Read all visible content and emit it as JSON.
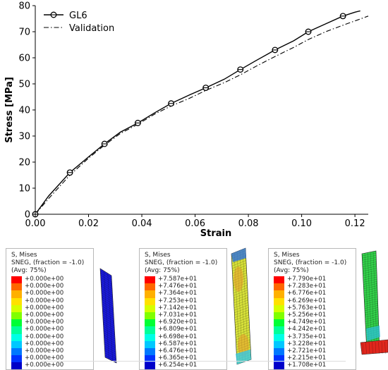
{
  "chart_data": {
    "type": "line",
    "xlabel": "Strain",
    "ylabel": "Stress [MPa]",
    "xlim": [
      0,
      0.125
    ],
    "ylim": [
      0,
      80
    ],
    "xticks": [
      0.0,
      0.02,
      0.04,
      0.06,
      0.08,
      0.1,
      0.12
    ],
    "xtick_labels": [
      "0.00",
      "0.02",
      "0.04",
      "0.06",
      "0.08",
      "0.10",
      "0.12"
    ],
    "yticks": [
      0,
      10,
      20,
      30,
      40,
      50,
      60,
      70,
      80
    ],
    "ytick_labels": [
      "0",
      "10",
      "20",
      "30",
      "40",
      "50",
      "60",
      "70",
      "80"
    ],
    "legend_position": "top-left",
    "grid": false,
    "series": [
      {
        "name": "GL6",
        "style": "solid-with-markers",
        "color": "#000000",
        "x": [
          0,
          0.005,
          0.013,
          0.02,
          0.026,
          0.032,
          0.0385,
          0.045,
          0.051,
          0.058,
          0.064,
          0.071,
          0.077,
          0.083,
          0.09,
          0.097,
          0.1025,
          0.109,
          0.1155,
          0.12,
          0.122
        ],
        "y": [
          0,
          7,
          16,
          22,
          27,
          31.5,
          35,
          39,
          42.5,
          45.8,
          48.5,
          51.8,
          55.5,
          59,
          63,
          66.5,
          70,
          73,
          76,
          77.5,
          78
        ],
        "markers_x": [
          0,
          0.013,
          0.026,
          0.0385,
          0.051,
          0.064,
          0.077,
          0.09,
          0.1025,
          0.1155
        ],
        "markers_y": [
          0,
          16,
          27,
          35,
          42.5,
          48.5,
          55.5,
          63,
          70,
          76
        ]
      },
      {
        "name": "Validation",
        "style": "dash-dot",
        "color": "#000000",
        "x": [
          0,
          0.005,
          0.013,
          0.02,
          0.026,
          0.032,
          0.0385,
          0.045,
          0.051,
          0.058,
          0.064,
          0.071,
          0.077,
          0.083,
          0.09,
          0.097,
          0.1025,
          0.109,
          0.1155,
          0.121,
          0.125
        ],
        "y": [
          0,
          6,
          15,
          21.5,
          26.5,
          31,
          34.5,
          38.5,
          41.5,
          44.5,
          47.5,
          50.5,
          53.5,
          56.8,
          60.5,
          64,
          67,
          70,
          72.5,
          74.5,
          76
        ]
      }
    ]
  },
  "contours": [
    {
      "title_lines": [
        "S, Mises",
        "SNEG, (fraction = -1.0)",
        "(Avg: 75%)"
      ],
      "values": [
        "+0.000e+00",
        "+0.000e+00",
        "+0.000e+00",
        "+0.000e+00",
        "+0.000e+00",
        "+0.000e+00",
        "+0.000e+00",
        "+0.000e+00",
        "+0.000e+00",
        "+0.000e+00",
        "+0.000e+00",
        "+0.000e+00",
        "+0.000e+00"
      ]
    },
    {
      "title_lines": [
        "S, Mises",
        "SNEG, (fraction = -1.0)",
        "(Avg: 75%)"
      ],
      "values": [
        "+7.587e+01",
        "+7.476e+01",
        "+7.364e+01",
        "+7.253e+01",
        "+7.142e+01",
        "+7.031e+01",
        "+6.920e+01",
        "+6.809e+01",
        "+6.698e+01",
        "+6.587e+01",
        "+6.476e+01",
        "+6.365e+01",
        "+6.254e+01"
      ]
    },
    {
      "title_lines": [
        "S, Mises",
        "SNEG, (fraction = -1.0)",
        "(Avg: 75%)"
      ],
      "values": [
        "+7.790e+01",
        "+7.283e+01",
        "+6.776e+01",
        "+6.269e+01",
        "+5.763e+01",
        "+5.256e+01",
        "+4.749e+01",
        "+4.242e+01",
        "+3.735e+01",
        "+3.228e+01",
        "+2.721e+01",
        "+2.215e+01",
        "+1.708e+01"
      ]
    }
  ],
  "colors": {
    "scale": [
      "#ff0000",
      "#ff6600",
      "#ffb000",
      "#ffe100",
      "#d6ff00",
      "#80ff00",
      "#00ff35",
      "#00ff9a",
      "#00ffe6",
      "#00c8ff",
      "#0078ff",
      "#0032ff",
      "#0000c8"
    ],
    "specimen_blue": "#1a1ad8",
    "specimen_yellow": "#d8e23a",
    "specimen_green": "#33d14a"
  }
}
